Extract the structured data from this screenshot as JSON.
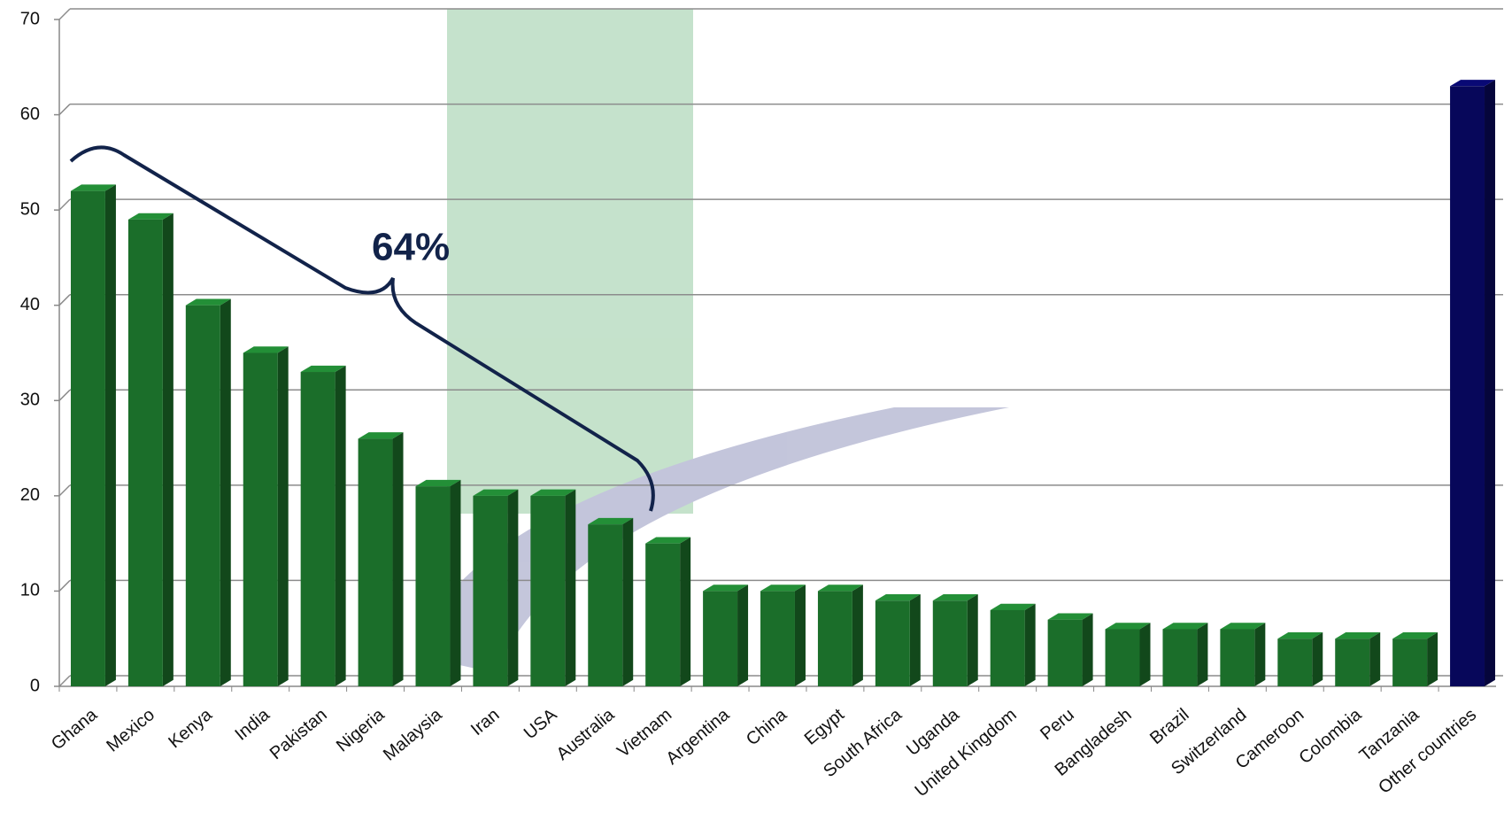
{
  "chart_data": {
    "type": "bar",
    "categories": [
      "Ghana",
      "Mexico",
      "Kenya",
      "India",
      "Pakistan",
      "Nigeria",
      "Malaysia",
      "Iran",
      "USA",
      "Australia",
      "Vietnam",
      "Argentina",
      "China",
      "Egypt",
      "South Africa",
      "Uganda",
      "United Kingdom",
      "Peru",
      "Bangladesh",
      "Brazil",
      "Switzerland",
      "Cameroon",
      "Colombia",
      "Tanzania",
      "Other countries"
    ],
    "values": [
      52,
      49,
      40,
      35,
      33,
      26,
      21,
      20,
      20,
      17,
      15,
      10,
      10,
      10,
      9,
      9,
      8,
      7,
      6,
      6,
      6,
      5,
      5,
      5,
      63
    ],
    "colors": [
      "#1b6e2a",
      "#1b6e2a",
      "#1b6e2a",
      "#1b6e2a",
      "#1b6e2a",
      "#1b6e2a",
      "#1b6e2a",
      "#1b6e2a",
      "#1b6e2a",
      "#1b6e2a",
      "#1b6e2a",
      "#1b6e2a",
      "#1b6e2a",
      "#1b6e2a",
      "#1b6e2a",
      "#1b6e2a",
      "#1b6e2a",
      "#1b6e2a",
      "#1b6e2a",
      "#1b6e2a",
      "#1b6e2a",
      "#1b6e2a",
      "#1b6e2a",
      "#1b6e2a",
      "#07075a"
    ],
    "ylim": [
      0,
      70
    ],
    "yticks": [
      0,
      10,
      20,
      30,
      40,
      50,
      60,
      70
    ],
    "grid": true,
    "annotation": "64%"
  }
}
